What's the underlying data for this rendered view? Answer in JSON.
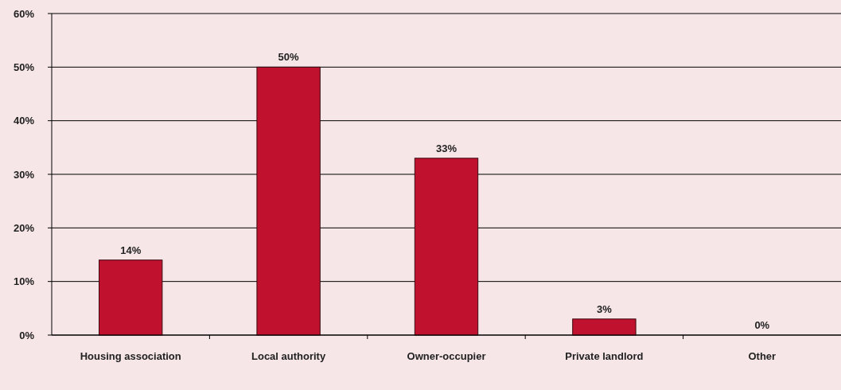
{
  "chart_data": {
    "type": "bar",
    "categories": [
      "Housing association",
      "Local authority",
      "Owner-occupier",
      "Private landlord",
      "Other"
    ],
    "values": [
      14,
      50,
      33,
      3,
      0
    ],
    "value_labels": [
      "14%",
      "50%",
      "33%",
      "3%",
      "0%"
    ],
    "color": "#c0112f",
    "ylim": [
      0,
      60
    ],
    "yticks": [
      {
        "value": 0,
        "label": "0%"
      },
      {
        "value": 10,
        "label": "10%"
      },
      {
        "value": 20,
        "label": "20%"
      },
      {
        "value": 30,
        "label": "30%"
      },
      {
        "value": 40,
        "label": "40%"
      },
      {
        "value": 50,
        "label": "50%"
      },
      {
        "value": 60,
        "label": "60%"
      }
    ],
    "grid": "y"
  }
}
